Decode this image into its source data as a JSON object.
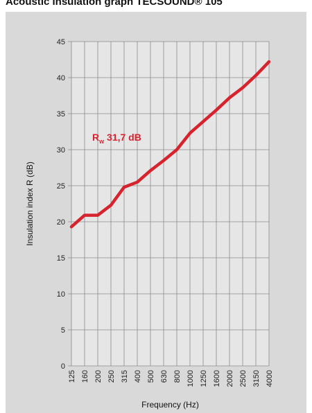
{
  "chart_data": {
    "type": "line",
    "title": "Acoustic insulation graph TECSOUND® 105",
    "xlabel": "Frequency (Hz)",
    "ylabel": "Insulation index R (dB)",
    "categories": [
      "125",
      "160",
      "200",
      "250",
      "315",
      "400",
      "500",
      "630",
      "800",
      "1000",
      "1250",
      "1600",
      "2000",
      "2500",
      "3150",
      "4000"
    ],
    "series": [
      {
        "values": [
          19.3,
          20.9,
          20.9,
          22.3,
          24.8,
          25.5,
          27.1,
          28.5,
          30.0,
          32.3,
          33.9,
          35.5,
          37.2,
          38.6,
          40.3,
          42.2
        ]
      }
    ],
    "yticks": [
      0,
      5,
      10,
      15,
      20,
      25,
      30,
      35,
      40,
      45
    ],
    "ylim": [
      0,
      45
    ],
    "grid": true,
    "annotation": {
      "main": "R",
      "sub": "w",
      "value": " 31,7 dB"
    },
    "colors": {
      "line": "#d6232d",
      "plot_bg": "#e6e6e6",
      "panel_bg": "#d9d9d9",
      "grid": "#8a8a8a"
    }
  }
}
